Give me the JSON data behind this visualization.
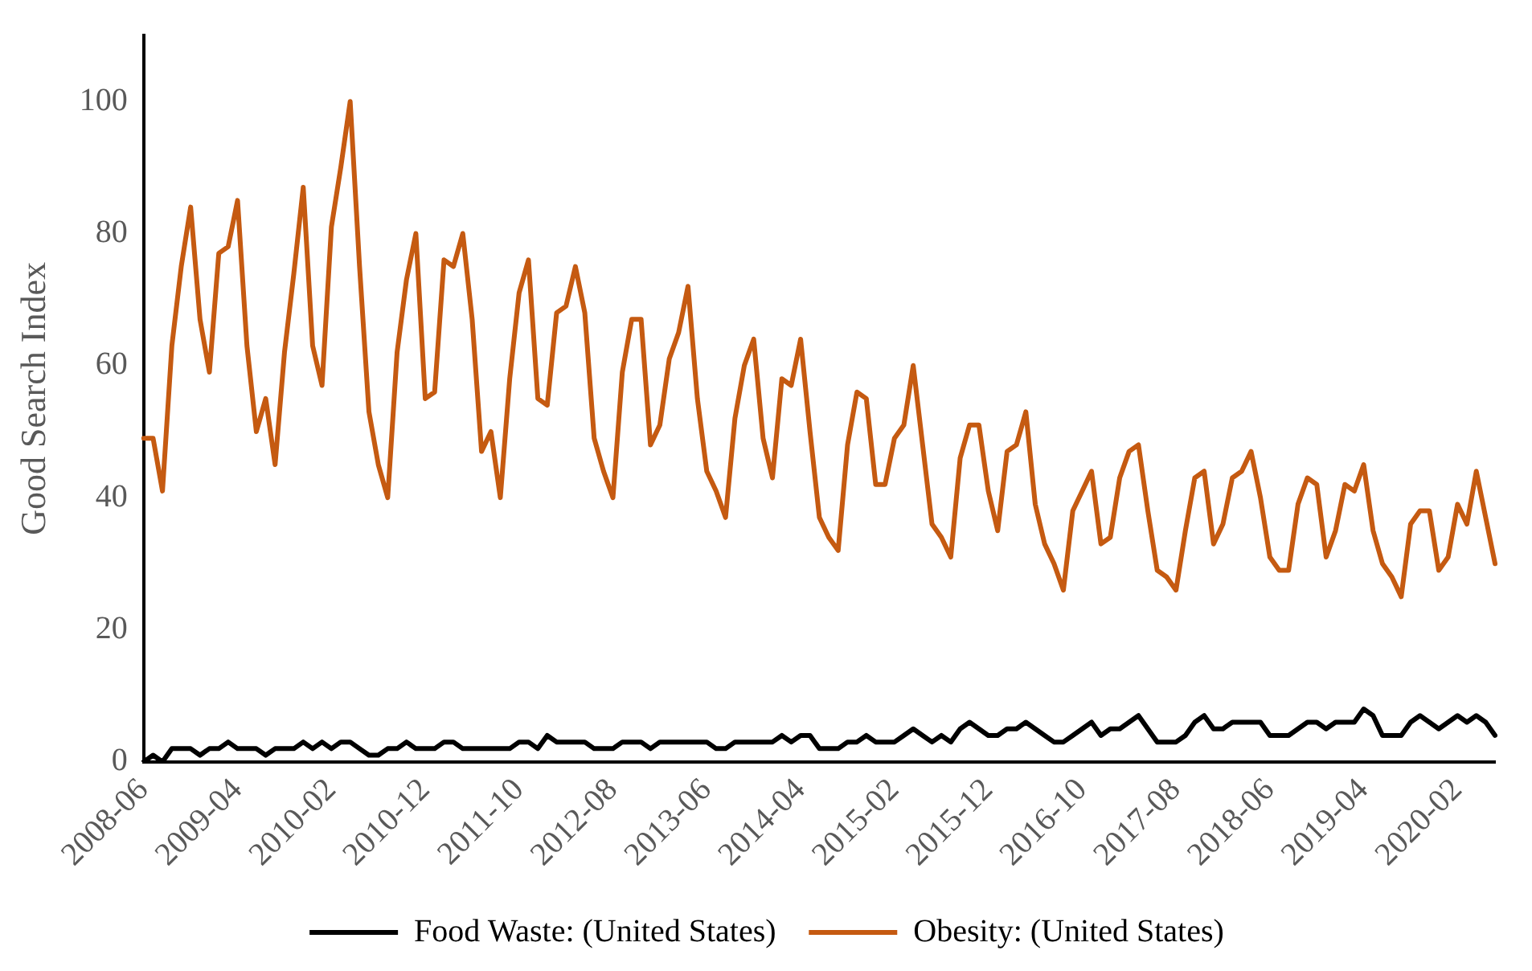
{
  "chart_data": {
    "type": "line",
    "ylabel": "Good Search Index",
    "ylim": [
      0,
      110
    ],
    "yticks": [
      0,
      20,
      40,
      60,
      80,
      100
    ],
    "grid": false,
    "legend": "bottom",
    "marker": "none",
    "line_style": "solid",
    "categories": [
      "2008-06",
      null,
      null,
      null,
      null,
      null,
      null,
      null,
      null,
      null,
      "2009-04",
      null,
      null,
      null,
      null,
      null,
      null,
      null,
      null,
      null,
      "2010-02",
      null,
      null,
      null,
      null,
      null,
      null,
      null,
      null,
      null,
      "2010-12",
      null,
      null,
      null,
      null,
      null,
      null,
      null,
      null,
      null,
      "2011-10",
      null,
      null,
      null,
      null,
      null,
      null,
      null,
      null,
      null,
      "2012-08",
      null,
      null,
      null,
      null,
      null,
      null,
      null,
      null,
      null,
      "2013-06",
      null,
      null,
      null,
      null,
      null,
      null,
      null,
      null,
      null,
      "2014-04",
      null,
      null,
      null,
      null,
      null,
      null,
      null,
      null,
      null,
      "2015-02",
      null,
      null,
      null,
      null,
      null,
      null,
      null,
      null,
      null,
      "2015-12",
      null,
      null,
      null,
      null,
      null,
      null,
      null,
      null,
      null,
      "2016-10",
      null,
      null,
      null,
      null,
      null,
      null,
      null,
      null,
      null,
      "2017-08",
      null,
      null,
      null,
      null,
      null,
      null,
      null,
      null,
      null,
      "2018-06",
      null,
      null,
      null,
      null,
      null,
      null,
      null,
      null,
      null,
      "2019-04",
      null,
      null,
      null,
      null,
      null,
      null,
      null,
      null,
      null,
      "2020-02",
      null,
      null,
      null,
      null
    ],
    "series": [
      {
        "name": "Food Waste: (United States)",
        "color": "#000000",
        "values": [
          0,
          1,
          0,
          2,
          2,
          2,
          1,
          2,
          2,
          3,
          2,
          2,
          2,
          1,
          2,
          2,
          2,
          3,
          2,
          3,
          2,
          3,
          3,
          2,
          1,
          1,
          2,
          2,
          3,
          2,
          2,
          2,
          3,
          3,
          2,
          2,
          2,
          2,
          2,
          2,
          3,
          3,
          2,
          4,
          3,
          3,
          3,
          3,
          2,
          2,
          2,
          3,
          3,
          3,
          2,
          3,
          3,
          3,
          3,
          3,
          3,
          2,
          2,
          3,
          3,
          3,
          3,
          3,
          4,
          3,
          4,
          4,
          2,
          2,
          2,
          3,
          3,
          4,
          3,
          3,
          3,
          4,
          5,
          4,
          3,
          4,
          3,
          5,
          6,
          5,
          4,
          4,
          5,
          5,
          6,
          5,
          4,
          3,
          3,
          4,
          5,
          6,
          4,
          5,
          5,
          6,
          7,
          5,
          3,
          3,
          3,
          4,
          6,
          7,
          5,
          5,
          6,
          6,
          6,
          6,
          4,
          4,
          4,
          5,
          6,
          6,
          5,
          6,
          6,
          6,
          8,
          7,
          4,
          4,
          4,
          6,
          7,
          6,
          5,
          6,
          7,
          6,
          7,
          6,
          4
        ]
      },
      {
        "name": "Obesity: (United States)",
        "color": "#c55a11",
        "values": [
          49,
          49,
          41,
          63,
          75,
          84,
          67,
          59,
          77,
          78,
          85,
          63,
          50,
          55,
          45,
          62,
          74,
          87,
          63,
          57,
          81,
          90,
          100,
          75,
          53,
          45,
          40,
          62,
          73,
          80,
          55,
          56,
          76,
          75,
          80,
          67,
          47,
          50,
          40,
          58,
          71,
          76,
          55,
          54,
          68,
          69,
          75,
          68,
          49,
          44,
          40,
          59,
          67,
          67,
          48,
          51,
          61,
          65,
          72,
          55,
          44,
          41,
          37,
          52,
          60,
          64,
          49,
          43,
          58,
          57,
          64,
          50,
          37,
          34,
          32,
          48,
          56,
          55,
          42,
          42,
          49,
          51,
          60,
          48,
          36,
          34,
          31,
          46,
          51,
          51,
          41,
          35,
          47,
          48,
          53,
          39,
          33,
          30,
          26,
          38,
          41,
          44,
          33,
          34,
          43,
          47,
          48,
          38,
          29,
          28,
          26,
          35,
          43,
          44,
          33,
          36,
          43,
          44,
          47,
          40,
          31,
          29,
          29,
          39,
          43,
          42,
          31,
          35,
          42,
          41,
          45,
          35,
          30,
          28,
          25,
          36,
          38,
          38,
          29,
          31,
          39,
          36,
          44,
          37,
          30
        ]
      }
    ]
  }
}
